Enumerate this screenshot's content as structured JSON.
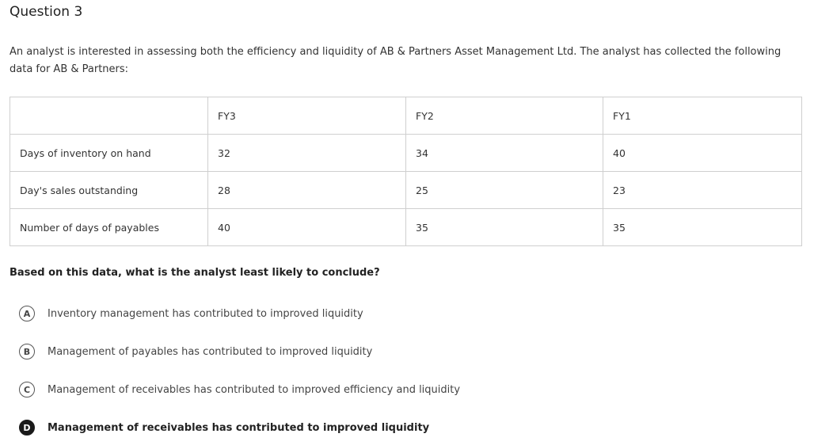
{
  "question": {
    "title": "Question 3",
    "intro": "An analyst is interested in assessing both the efficiency and liquidity of AB & Partners Asset Management Ltd. The analyst has collected the following data for AB & Partners:",
    "prompt": "Based on this data, what is the analyst least likely to conclude?"
  },
  "table": {
    "headers": [
      "",
      "FY3",
      "FY2",
      "FY1"
    ],
    "rows": [
      [
        "Days of inventory on hand",
        "32",
        "34",
        "40"
      ],
      [
        "Day's sales outstanding",
        "28",
        "25",
        "23"
      ],
      [
        "Number of days of payables",
        "40",
        "35",
        "35"
      ]
    ]
  },
  "options": [
    {
      "letter": "A",
      "text": "Inventory management has contributed to improved liquidity",
      "selected": false
    },
    {
      "letter": "B",
      "text": "Management of payables has contributed to improved liquidity",
      "selected": false
    },
    {
      "letter": "C",
      "text": "Management of receivables has contributed to improved efficiency and liquidity",
      "selected": false
    },
    {
      "letter": "D",
      "text": "Management of receivables has contributed to improved liquidity",
      "selected": true
    }
  ],
  "colors": {
    "selected_badge": "#1a1a1a",
    "border": "#cfcfcf"
  }
}
